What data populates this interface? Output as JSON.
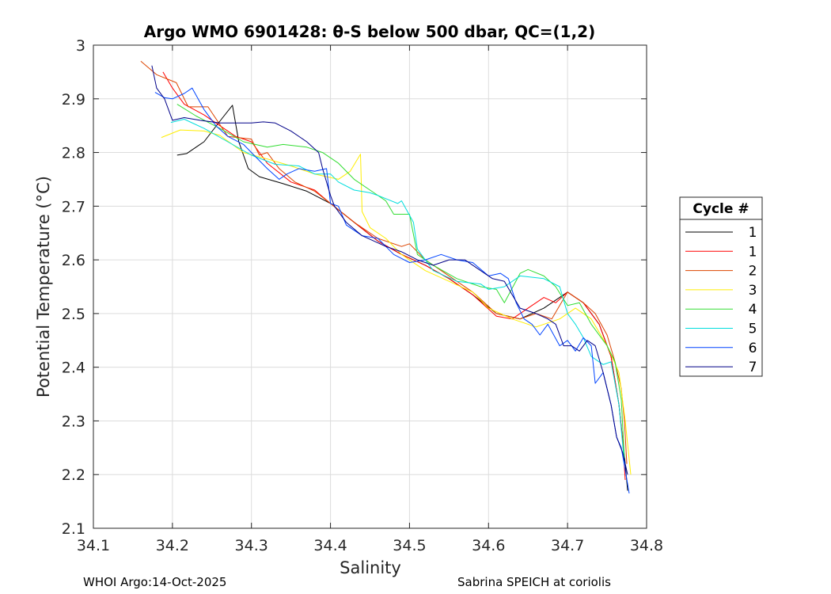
{
  "chart_data": {
    "type": "line",
    "title": "Argo WMO 6901428: θ-S below 500 dbar,  QC=(1,2)",
    "xlabel": "Salinity",
    "ylabel": "Potential Temperature (°C)",
    "xlim": [
      34.1,
      34.8
    ],
    "ylim": [
      2.1,
      3.0
    ],
    "xticks": [
      34.1,
      34.2,
      34.3,
      34.4,
      34.5,
      34.6,
      34.7,
      34.8
    ],
    "yticks": [
      2.1,
      2.2,
      2.3,
      2.4,
      2.5,
      2.6,
      2.7,
      2.8,
      2.9,
      3.0
    ],
    "xtick_labels": [
      "34.1",
      "34.2",
      "34.3",
      "34.4",
      "34.5",
      "34.6",
      "34.7",
      "34.8"
    ],
    "ytick_labels": [
      "2.1",
      "2.2",
      "2.3",
      "2.4",
      "2.5",
      "2.6",
      "2.7",
      "2.8",
      "2.9",
      "3"
    ],
    "grid": true,
    "legend": {
      "title": "Cycle #",
      "placement": "outside-right"
    },
    "series": [
      {
        "name": "1",
        "color": "#000000",
        "points": [
          [
            34.206,
            2.795
          ],
          [
            34.218,
            2.798
          ],
          [
            34.24,
            2.82
          ],
          [
            34.262,
            2.862
          ],
          [
            34.276,
            2.888
          ],
          [
            34.284,
            2.82
          ],
          [
            34.296,
            2.77
          ],
          [
            34.31,
            2.755
          ],
          [
            34.34,
            2.742
          ],
          [
            34.37,
            2.728
          ],
          [
            34.4,
            2.705
          ],
          [
            34.43,
            2.67
          ],
          [
            34.46,
            2.635
          ],
          [
            34.49,
            2.61
          ],
          [
            34.52,
            2.59
          ],
          [
            34.55,
            2.565
          ],
          [
            34.58,
            2.535
          ],
          [
            34.61,
            2.5
          ],
          [
            34.64,
            2.49
          ],
          [
            34.67,
            2.51
          ],
          [
            34.7,
            2.54
          ],
          [
            34.72,
            2.52
          ],
          [
            34.74,
            2.48
          ],
          [
            34.755,
            2.42
          ],
          [
            34.765,
            2.33
          ],
          [
            34.773,
            2.22
          ],
          [
            34.776,
            2.17
          ]
        ]
      },
      {
        "name": "1",
        "color": "#ff0000",
        "points": [
          [
            34.188,
            2.95
          ],
          [
            34.2,
            2.92
          ],
          [
            34.215,
            2.89
          ],
          [
            34.24,
            2.87
          ],
          [
            34.26,
            2.85
          ],
          [
            34.28,
            2.83
          ],
          [
            34.3,
            2.82
          ],
          [
            34.32,
            2.78
          ],
          [
            34.35,
            2.745
          ],
          [
            34.38,
            2.73
          ],
          [
            34.4,
            2.705
          ],
          [
            34.43,
            2.67
          ],
          [
            34.46,
            2.635
          ],
          [
            34.49,
            2.61
          ],
          [
            34.52,
            2.59
          ],
          [
            34.55,
            2.565
          ],
          [
            34.58,
            2.535
          ],
          [
            34.61,
            2.495
          ],
          [
            34.63,
            2.49
          ],
          [
            34.655,
            2.515
          ],
          [
            34.67,
            2.53
          ],
          [
            34.685,
            2.52
          ],
          [
            34.7,
            2.54
          ],
          [
            34.72,
            2.52
          ],
          [
            34.74,
            2.48
          ],
          [
            34.755,
            2.42
          ],
          [
            34.765,
            2.33
          ],
          [
            34.77,
            2.26
          ],
          [
            34.773,
            2.19
          ]
        ]
      },
      {
        "name": "2",
        "color": "#dd4400",
        "points": [
          [
            34.16,
            2.97
          ],
          [
            34.18,
            2.945
          ],
          [
            34.205,
            2.93
          ],
          [
            34.22,
            2.885
          ],
          [
            34.245,
            2.885
          ],
          [
            34.27,
            2.83
          ],
          [
            34.3,
            2.825
          ],
          [
            34.31,
            2.795
          ],
          [
            34.32,
            2.8
          ],
          [
            34.335,
            2.77
          ],
          [
            34.355,
            2.745
          ],
          [
            34.38,
            2.728
          ],
          [
            34.4,
            2.705
          ],
          [
            34.43,
            2.67
          ],
          [
            34.46,
            2.64
          ],
          [
            34.49,
            2.625
          ],
          [
            34.5,
            2.63
          ],
          [
            34.52,
            2.6
          ],
          [
            34.55,
            2.57
          ],
          [
            34.58,
            2.54
          ],
          [
            34.61,
            2.5
          ],
          [
            34.64,
            2.49
          ],
          [
            34.66,
            2.5
          ],
          [
            34.68,
            2.49
          ],
          [
            34.7,
            2.54
          ],
          [
            34.72,
            2.52
          ],
          [
            34.735,
            2.5
          ],
          [
            34.75,
            2.46
          ],
          [
            34.76,
            2.41
          ],
          [
            34.768,
            2.36
          ],
          [
            34.772,
            2.3
          ],
          [
            34.775,
            2.22
          ]
        ]
      },
      {
        "name": "3",
        "color": "#ffee00",
        "points": [
          [
            34.186,
            2.828
          ],
          [
            34.21,
            2.842
          ],
          [
            34.24,
            2.84
          ],
          [
            34.26,
            2.832
          ],
          [
            34.29,
            2.8
          ],
          [
            34.32,
            2.788
          ],
          [
            34.35,
            2.775
          ],
          [
            34.38,
            2.76
          ],
          [
            34.41,
            2.75
          ],
          [
            34.425,
            2.765
          ],
          [
            34.438,
            2.797
          ],
          [
            34.44,
            2.69
          ],
          [
            34.45,
            2.66
          ],
          [
            34.47,
            2.64
          ],
          [
            34.49,
            2.61
          ],
          [
            34.52,
            2.58
          ],
          [
            34.55,
            2.56
          ],
          [
            34.58,
            2.54
          ],
          [
            34.6,
            2.51
          ],
          [
            34.63,
            2.49
          ],
          [
            34.66,
            2.475
          ],
          [
            34.69,
            2.49
          ],
          [
            34.71,
            2.51
          ],
          [
            34.73,
            2.49
          ],
          [
            34.75,
            2.44
          ],
          [
            34.765,
            2.39
          ],
          [
            34.773,
            2.3
          ],
          [
            34.78,
            2.2
          ]
        ]
      },
      {
        "name": "4",
        "color": "#33dd33",
        "points": [
          [
            34.206,
            2.89
          ],
          [
            34.23,
            2.868
          ],
          [
            34.26,
            2.845
          ],
          [
            34.29,
            2.82
          ],
          [
            34.32,
            2.81
          ],
          [
            34.34,
            2.815
          ],
          [
            34.37,
            2.81
          ],
          [
            34.39,
            2.8
          ],
          [
            34.41,
            2.78
          ],
          [
            34.43,
            2.75
          ],
          [
            34.45,
            2.73
          ],
          [
            34.47,
            2.71
          ],
          [
            34.48,
            2.685
          ],
          [
            34.5,
            2.685
          ],
          [
            34.51,
            2.61
          ],
          [
            34.53,
            2.59
          ],
          [
            34.56,
            2.565
          ],
          [
            34.59,
            2.55
          ],
          [
            34.61,
            2.545
          ],
          [
            34.62,
            2.52
          ],
          [
            34.64,
            2.575
          ],
          [
            34.65,
            2.582
          ],
          [
            34.67,
            2.57
          ],
          [
            34.685,
            2.55
          ],
          [
            34.7,
            2.515
          ],
          [
            34.715,
            2.52
          ],
          [
            34.73,
            2.48
          ],
          [
            34.75,
            2.44
          ],
          [
            34.76,
            2.41
          ],
          [
            34.768,
            2.34
          ],
          [
            34.772,
            2.23
          ]
        ]
      },
      {
        "name": "5",
        "color": "#00dddd",
        "points": [
          [
            34.198,
            2.856
          ],
          [
            34.215,
            2.862
          ],
          [
            34.24,
            2.845
          ],
          [
            34.27,
            2.82
          ],
          [
            34.3,
            2.795
          ],
          [
            34.33,
            2.778
          ],
          [
            34.36,
            2.775
          ],
          [
            34.38,
            2.76
          ],
          [
            34.4,
            2.76
          ],
          [
            34.41,
            2.745
          ],
          [
            34.43,
            2.73
          ],
          [
            34.45,
            2.725
          ],
          [
            34.46,
            2.72
          ],
          [
            34.485,
            2.705
          ],
          [
            34.49,
            2.71
          ],
          [
            34.505,
            2.67
          ],
          [
            34.51,
            2.62
          ],
          [
            34.53,
            2.58
          ],
          [
            34.56,
            2.56
          ],
          [
            34.59,
            2.555
          ],
          [
            34.6,
            2.545
          ],
          [
            34.62,
            2.55
          ],
          [
            34.64,
            2.57
          ],
          [
            34.67,
            2.565
          ],
          [
            34.69,
            2.55
          ],
          [
            34.7,
            2.5
          ],
          [
            34.71,
            2.48
          ],
          [
            34.72,
            2.455
          ],
          [
            34.73,
            2.42
          ],
          [
            34.745,
            2.405
          ],
          [
            34.755,
            2.41
          ],
          [
            34.765,
            2.33
          ],
          [
            34.772,
            2.22
          ]
        ]
      },
      {
        "name": "6",
        "color": "#0044ff",
        "points": [
          [
            34.178,
            2.912
          ],
          [
            34.19,
            2.902
          ],
          [
            34.2,
            2.9
          ],
          [
            34.215,
            2.91
          ],
          [
            34.225,
            2.92
          ],
          [
            34.24,
            2.88
          ],
          [
            34.255,
            2.85
          ],
          [
            34.27,
            2.83
          ],
          [
            34.29,
            2.815
          ],
          [
            34.3,
            2.8
          ],
          [
            34.32,
            2.77
          ],
          [
            34.335,
            2.75
          ],
          [
            34.345,
            2.76
          ],
          [
            34.36,
            2.77
          ],
          [
            34.38,
            2.765
          ],
          [
            34.395,
            2.77
          ],
          [
            34.4,
            2.705
          ],
          [
            34.41,
            2.7
          ],
          [
            34.42,
            2.665
          ],
          [
            34.44,
            2.645
          ],
          [
            34.46,
            2.64
          ],
          [
            34.48,
            2.61
          ],
          [
            34.5,
            2.595
          ],
          [
            34.52,
            2.6
          ],
          [
            34.54,
            2.61
          ],
          [
            34.56,
            2.6
          ],
          [
            34.58,
            2.595
          ],
          [
            34.6,
            2.57
          ],
          [
            34.615,
            2.575
          ],
          [
            34.625,
            2.565
          ],
          [
            34.635,
            2.52
          ],
          [
            34.645,
            2.49
          ],
          [
            34.655,
            2.48
          ],
          [
            34.665,
            2.46
          ],
          [
            34.675,
            2.48
          ],
          [
            34.69,
            2.44
          ],
          [
            34.7,
            2.45
          ],
          [
            34.71,
            2.43
          ],
          [
            34.72,
            2.455
          ],
          [
            34.73,
            2.44
          ],
          [
            34.735,
            2.37
          ],
          [
            34.745,
            2.39
          ],
          [
            34.755,
            2.33
          ],
          [
            34.762,
            2.27
          ],
          [
            34.768,
            2.25
          ],
          [
            34.774,
            2.2
          ],
          [
            34.778,
            2.165
          ]
        ]
      },
      {
        "name": "7",
        "color": "#000088",
        "points": [
          [
            34.174,
            2.962
          ],
          [
            34.18,
            2.92
          ],
          [
            34.19,
            2.9
          ],
          [
            34.2,
            2.86
          ],
          [
            34.215,
            2.865
          ],
          [
            34.235,
            2.86
          ],
          [
            34.26,
            2.855
          ],
          [
            34.3,
            2.855
          ],
          [
            34.315,
            2.857
          ],
          [
            34.33,
            2.855
          ],
          [
            34.35,
            2.84
          ],
          [
            34.37,
            2.82
          ],
          [
            34.385,
            2.8
          ],
          [
            34.39,
            2.77
          ],
          [
            34.4,
            2.72
          ],
          [
            34.405,
            2.7
          ],
          [
            34.42,
            2.67
          ],
          [
            34.44,
            2.645
          ],
          [
            34.47,
            2.625
          ],
          [
            34.49,
            2.615
          ],
          [
            34.51,
            2.6
          ],
          [
            34.53,
            2.59
          ],
          [
            34.55,
            2.6
          ],
          [
            34.57,
            2.6
          ],
          [
            34.59,
            2.58
          ],
          [
            34.605,
            2.565
          ],
          [
            34.62,
            2.56
          ],
          [
            34.63,
            2.535
          ],
          [
            34.64,
            2.51
          ],
          [
            34.66,
            2.5
          ],
          [
            34.675,
            2.49
          ],
          [
            34.685,
            2.48
          ],
          [
            34.695,
            2.44
          ],
          [
            34.705,
            2.44
          ],
          [
            34.715,
            2.43
          ],
          [
            34.725,
            2.45
          ],
          [
            34.735,
            2.44
          ],
          [
            34.745,
            2.39
          ],
          [
            34.755,
            2.33
          ],
          [
            34.762,
            2.27
          ],
          [
            34.77,
            2.24
          ],
          [
            34.776,
            2.2
          ]
        ]
      }
    ]
  },
  "footer": {
    "left": "WHOI Argo:14-Oct-2025",
    "right": "Sabrina SPEICH at coriolis"
  }
}
